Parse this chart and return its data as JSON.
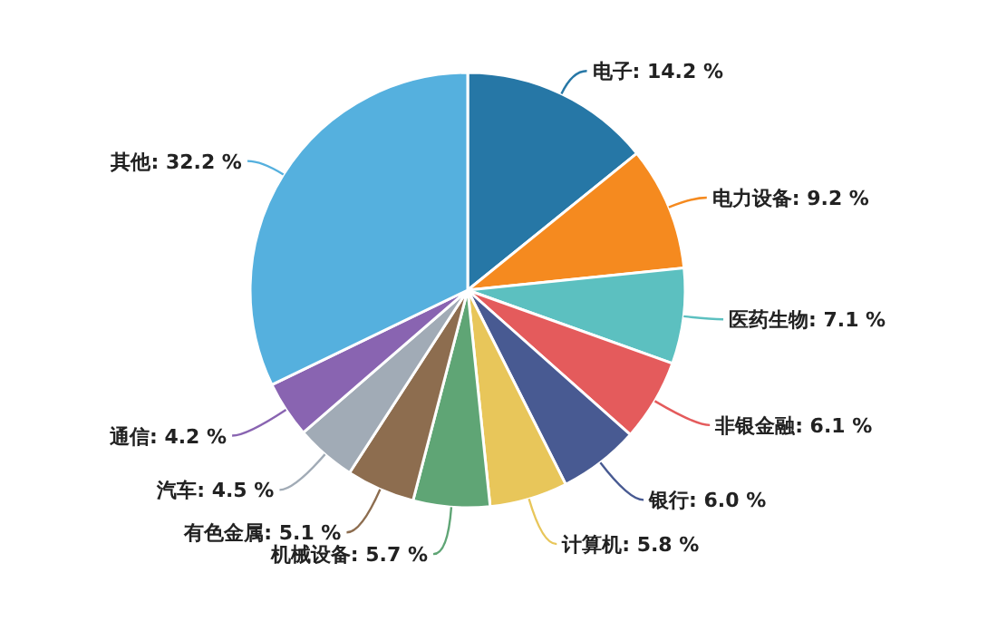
{
  "chart_data": {
    "type": "pie",
    "categories": [
      "电子",
      "电力设备",
      "医药生物",
      "非银金融",
      "银行",
      "计算机",
      "机械设备",
      "有色金属",
      "汽车",
      "通信",
      "其他"
    ],
    "values": [
      14.2,
      9.2,
      7.1,
      6.1,
      6.0,
      5.8,
      5.7,
      5.1,
      4.5,
      4.2,
      32.2
    ],
    "value_labels": [
      "14.2 %",
      "9.2 %",
      "7.1 %",
      "6.1 %",
      "6.0 %",
      "5.8 %",
      "5.7 %",
      "5.1 %",
      "4.5 %",
      "4.2 %",
      "32.2 %"
    ],
    "colors": [
      "#2677a6",
      "#f58a1f",
      "#5cc0c0",
      "#e45b5c",
      "#485a92",
      "#e8c65a",
      "#5fa575",
      "#8d6d4f",
      "#a1abb6",
      "#8964b1",
      "#55b0de"
    ]
  }
}
